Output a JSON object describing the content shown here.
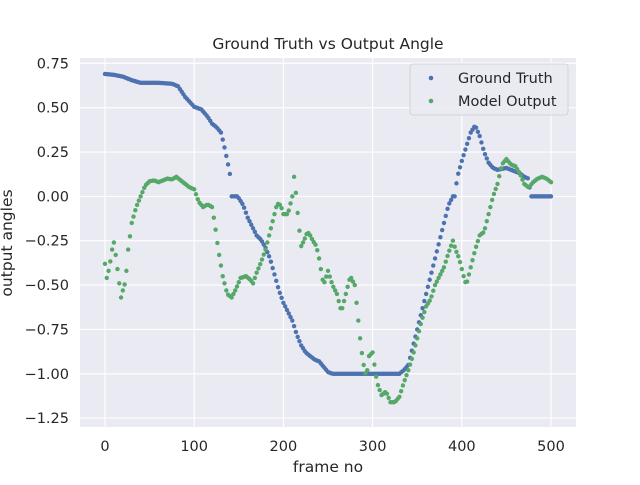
{
  "chart_data": {
    "type": "scatter",
    "title": "Ground Truth vs Output Angle",
    "xlabel": "frame no",
    "ylabel": "output angles",
    "xlim": [
      -28,
      528
    ],
    "ylim": [
      -1.3,
      0.78
    ],
    "xticks": [
      0,
      100,
      200,
      300,
      400,
      500
    ],
    "yticks": [
      -1.25,
      -1.0,
      -0.75,
      -0.5,
      -0.25,
      0.0,
      0.25,
      0.5,
      0.75
    ],
    "ytick_labels": [
      "−1.25",
      "−1.00",
      "−0.75",
      "−0.50",
      "−0.25",
      "0.00",
      "0.25",
      "0.50",
      "0.75"
    ],
    "grid": true,
    "legend_position": "top-right",
    "colors": {
      "background": "#eaeaf2",
      "grid": "#ffffff",
      "ground_truth": "#4c72b0",
      "model_output": "#55a868"
    },
    "series": [
      {
        "name": "Ground Truth",
        "keypoints": [
          [
            0,
            0.69
          ],
          [
            10,
            0.685
          ],
          [
            20,
            0.675
          ],
          [
            30,
            0.655
          ],
          [
            40,
            0.64
          ],
          [
            60,
            0.64
          ],
          [
            75,
            0.635
          ],
          [
            82,
            0.62
          ],
          [
            90,
            0.56
          ],
          [
            100,
            0.505
          ],
          [
            108,
            0.49
          ],
          [
            115,
            0.45
          ],
          [
            120,
            0.41
          ],
          [
            125,
            0.39
          ],
          [
            130,
            0.36
          ],
          [
            133,
            0.3
          ],
          [
            138,
            0.18
          ],
          [
            141,
            0.1
          ],
          [
            142,
            0.0
          ],
          [
            148,
            0.0
          ],
          [
            150,
            -0.01
          ],
          [
            155,
            -0.05
          ],
          [
            160,
            -0.12
          ],
          [
            165,
            -0.17
          ],
          [
            170,
            -0.22
          ],
          [
            175,
            -0.245
          ],
          [
            180,
            -0.29
          ],
          [
            185,
            -0.35
          ],
          [
            190,
            -0.44
          ],
          [
            195,
            -0.53
          ],
          [
            200,
            -0.6
          ],
          [
            205,
            -0.65
          ],
          [
            210,
            -0.7
          ],
          [
            215,
            -0.78
          ],
          [
            220,
            -0.84
          ],
          [
            225,
            -0.88
          ],
          [
            230,
            -0.9
          ],
          [
            235,
            -0.92
          ],
          [
            240,
            -0.93
          ],
          [
            245,
            -0.96
          ],
          [
            250,
            -0.99
          ],
          [
            255,
            -1.0
          ],
          [
            330,
            -1.0
          ],
          [
            335,
            -0.98
          ],
          [
            340,
            -0.95
          ],
          [
            345,
            -0.85
          ],
          [
            350,
            -0.75
          ],
          [
            355,
            -0.65
          ],
          [
            360,
            -0.55
          ],
          [
            365,
            -0.45
          ],
          [
            370,
            -0.35
          ],
          [
            375,
            -0.25
          ],
          [
            380,
            -0.15
          ],
          [
            385,
            -0.05
          ],
          [
            390,
            0.0
          ],
          [
            392,
            0.0
          ],
          [
            395,
            0.11
          ],
          [
            400,
            0.2
          ],
          [
            405,
            0.28
          ],
          [
            410,
            0.36
          ],
          [
            415,
            0.4
          ],
          [
            420,
            0.34
          ],
          [
            425,
            0.25
          ],
          [
            430,
            0.19
          ],
          [
            435,
            0.16
          ],
          [
            440,
            0.15
          ],
          [
            445,
            0.155
          ],
          [
            450,
            0.16
          ],
          [
            455,
            0.15
          ],
          [
            460,
            0.14
          ],
          [
            465,
            0.13
          ],
          [
            470,
            0.11
          ],
          [
            475,
            0.1
          ],
          [
            477,
            0.0
          ],
          [
            500,
            0.0
          ]
        ]
      },
      {
        "name": "Model Output",
        "keypoints": [
          [
            0,
            -0.38
          ],
          [
            2,
            -0.46
          ],
          [
            5,
            -0.4
          ],
          [
            8,
            -0.3
          ],
          [
            10,
            -0.26
          ],
          [
            12,
            -0.33
          ],
          [
            15,
            -0.45
          ],
          [
            18,
            -0.57
          ],
          [
            20,
            -0.53
          ],
          [
            23,
            -0.48
          ],
          [
            26,
            -0.3
          ],
          [
            30,
            -0.15
          ],
          [
            35,
            -0.06
          ],
          [
            40,
            0.0
          ],
          [
            45,
            0.06
          ],
          [
            50,
            0.085
          ],
          [
            55,
            0.09
          ],
          [
            60,
            0.08
          ],
          [
            65,
            0.09
          ],
          [
            70,
            0.1
          ],
          [
            75,
            0.095
          ],
          [
            80,
            0.11
          ],
          [
            85,
            0.09
          ],
          [
            90,
            0.07
          ],
          [
            95,
            0.05
          ],
          [
            100,
            0.04
          ],
          [
            105,
            -0.03
          ],
          [
            110,
            -0.06
          ],
          [
            115,
            -0.045
          ],
          [
            120,
            -0.06
          ],
          [
            123,
            -0.15
          ],
          [
            127,
            -0.3
          ],
          [
            132,
            -0.45
          ],
          [
            137,
            -0.55
          ],
          [
            142,
            -0.57
          ],
          [
            147,
            -0.52
          ],
          [
            152,
            -0.46
          ],
          [
            158,
            -0.45
          ],
          [
            163,
            -0.47
          ],
          [
            166,
            -0.49
          ],
          [
            170,
            -0.43
          ],
          [
            175,
            -0.37
          ],
          [
            180,
            -0.3
          ],
          [
            185,
            -0.2
          ],
          [
            190,
            -0.1
          ],
          [
            193,
            -0.04
          ],
          [
            197,
            -0.05
          ],
          [
            200,
            -0.1
          ],
          [
            205,
            -0.1
          ],
          [
            210,
            0.0
          ],
          [
            212,
            0.11
          ],
          [
            214,
            0.02
          ],
          [
            217,
            -0.15
          ],
          [
            220,
            -0.28
          ],
          [
            223,
            -0.25
          ],
          [
            227,
            -0.2
          ],
          [
            230,
            -0.22
          ],
          [
            233,
            -0.25
          ],
          [
            237,
            -0.28
          ],
          [
            240,
            -0.35
          ],
          [
            245,
            -0.5
          ],
          [
            250,
            -0.42
          ],
          [
            255,
            -0.5
          ],
          [
            260,
            -0.55
          ],
          [
            265,
            -0.65
          ],
          [
            270,
            -0.55
          ],
          [
            275,
            -0.45
          ],
          [
            280,
            -0.5
          ],
          [
            283,
            -0.65
          ],
          [
            287,
            -0.85
          ],
          [
            290,
            -0.95
          ],
          [
            293,
            -1.02
          ],
          [
            296,
            -0.9
          ],
          [
            300,
            -0.88
          ],
          [
            305,
            -1.05
          ],
          [
            310,
            -1.12
          ],
          [
            315,
            -1.1
          ],
          [
            320,
            -1.16
          ],
          [
            325,
            -1.16
          ],
          [
            330,
            -1.13
          ],
          [
            335,
            -1.05
          ],
          [
            340,
            -0.98
          ],
          [
            345,
            -0.9
          ],
          [
            350,
            -0.8
          ],
          [
            355,
            -0.7
          ],
          [
            360,
            -0.62
          ],
          [
            365,
            -0.58
          ],
          [
            370,
            -0.5
          ],
          [
            375,
            -0.45
          ],
          [
            380,
            -0.4
          ],
          [
            385,
            -0.32
          ],
          [
            390,
            -0.25
          ],
          [
            393,
            -0.3
          ],
          [
            397,
            -0.35
          ],
          [
            402,
            -0.45
          ],
          [
            405,
            -0.5
          ],
          [
            410,
            -0.4
          ],
          [
            415,
            -0.3
          ],
          [
            420,
            -0.22
          ],
          [
            425,
            -0.2
          ],
          [
            430,
            -0.1
          ],
          [
            435,
            0.0
          ],
          [
            440,
            0.07
          ],
          [
            445,
            0.18
          ],
          [
            450,
            0.21
          ],
          [
            455,
            0.18
          ],
          [
            460,
            0.17
          ],
          [
            465,
            0.13
          ],
          [
            470,
            0.07
          ],
          [
            475,
            0.05
          ],
          [
            480,
            0.08
          ],
          [
            485,
            0.1
          ],
          [
            490,
            0.11
          ],
          [
            495,
            0.1
          ],
          [
            500,
            0.08
          ]
        ]
      }
    ]
  }
}
